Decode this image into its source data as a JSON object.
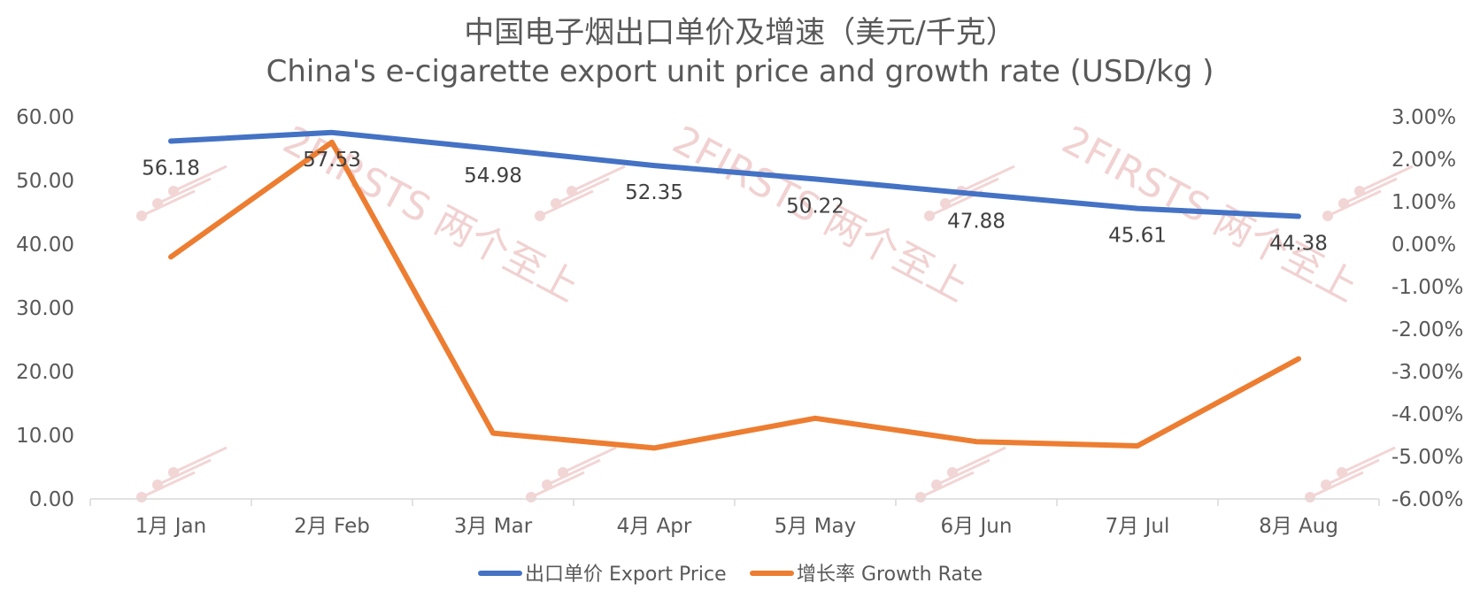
{
  "chart_data": {
    "type": "line",
    "title": "中国电子烟出口单价及增速（美元/千克）",
    "subtitle": "China's e-cigarette export unit price and growth rate (USD/kg )",
    "categories": [
      "1月 Jan",
      "2月 Feb",
      "3月 Mar",
      "4月 Apr",
      "5月 May",
      "6月 Jun",
      "7月 Jul",
      "8月 Aug"
    ],
    "series": [
      {
        "name": "出口单价 Export Price",
        "axis": "left",
        "color": "#4472C4",
        "values": [
          56.18,
          57.53,
          54.98,
          52.35,
          50.22,
          47.88,
          45.61,
          44.38
        ],
        "labels": [
          "56.18",
          "57.53",
          "54.98",
          "52.35",
          "50.22",
          "47.88",
          "45.61",
          "44.38"
        ]
      },
      {
        "name": "增长率 Growth Rate",
        "axis": "right",
        "color": "#ED7D31",
        "values": [
          -0.3,
          2.4,
          -4.45,
          -4.8,
          -4.1,
          -4.65,
          -4.75,
          -2.7
        ]
      }
    ],
    "y_left": {
      "min": 0,
      "max": 60,
      "step": 10,
      "ticks": [
        "0.00",
        "10.00",
        "20.00",
        "30.00",
        "40.00",
        "50.00",
        "60.00"
      ]
    },
    "y_right": {
      "min": -6,
      "max": 3,
      "step": 1,
      "ticks": [
        "-6.00%",
        "-5.00%",
        "-4.00%",
        "-3.00%",
        "-2.00%",
        "-1.00%",
        "0.00%",
        "1.00%",
        "2.00%",
        "3.00%"
      ]
    },
    "grid": false,
    "legend": "bottom"
  },
  "watermark": {
    "text": "2FIRSTS 两个至上",
    "color": "#E8B4B4"
  }
}
